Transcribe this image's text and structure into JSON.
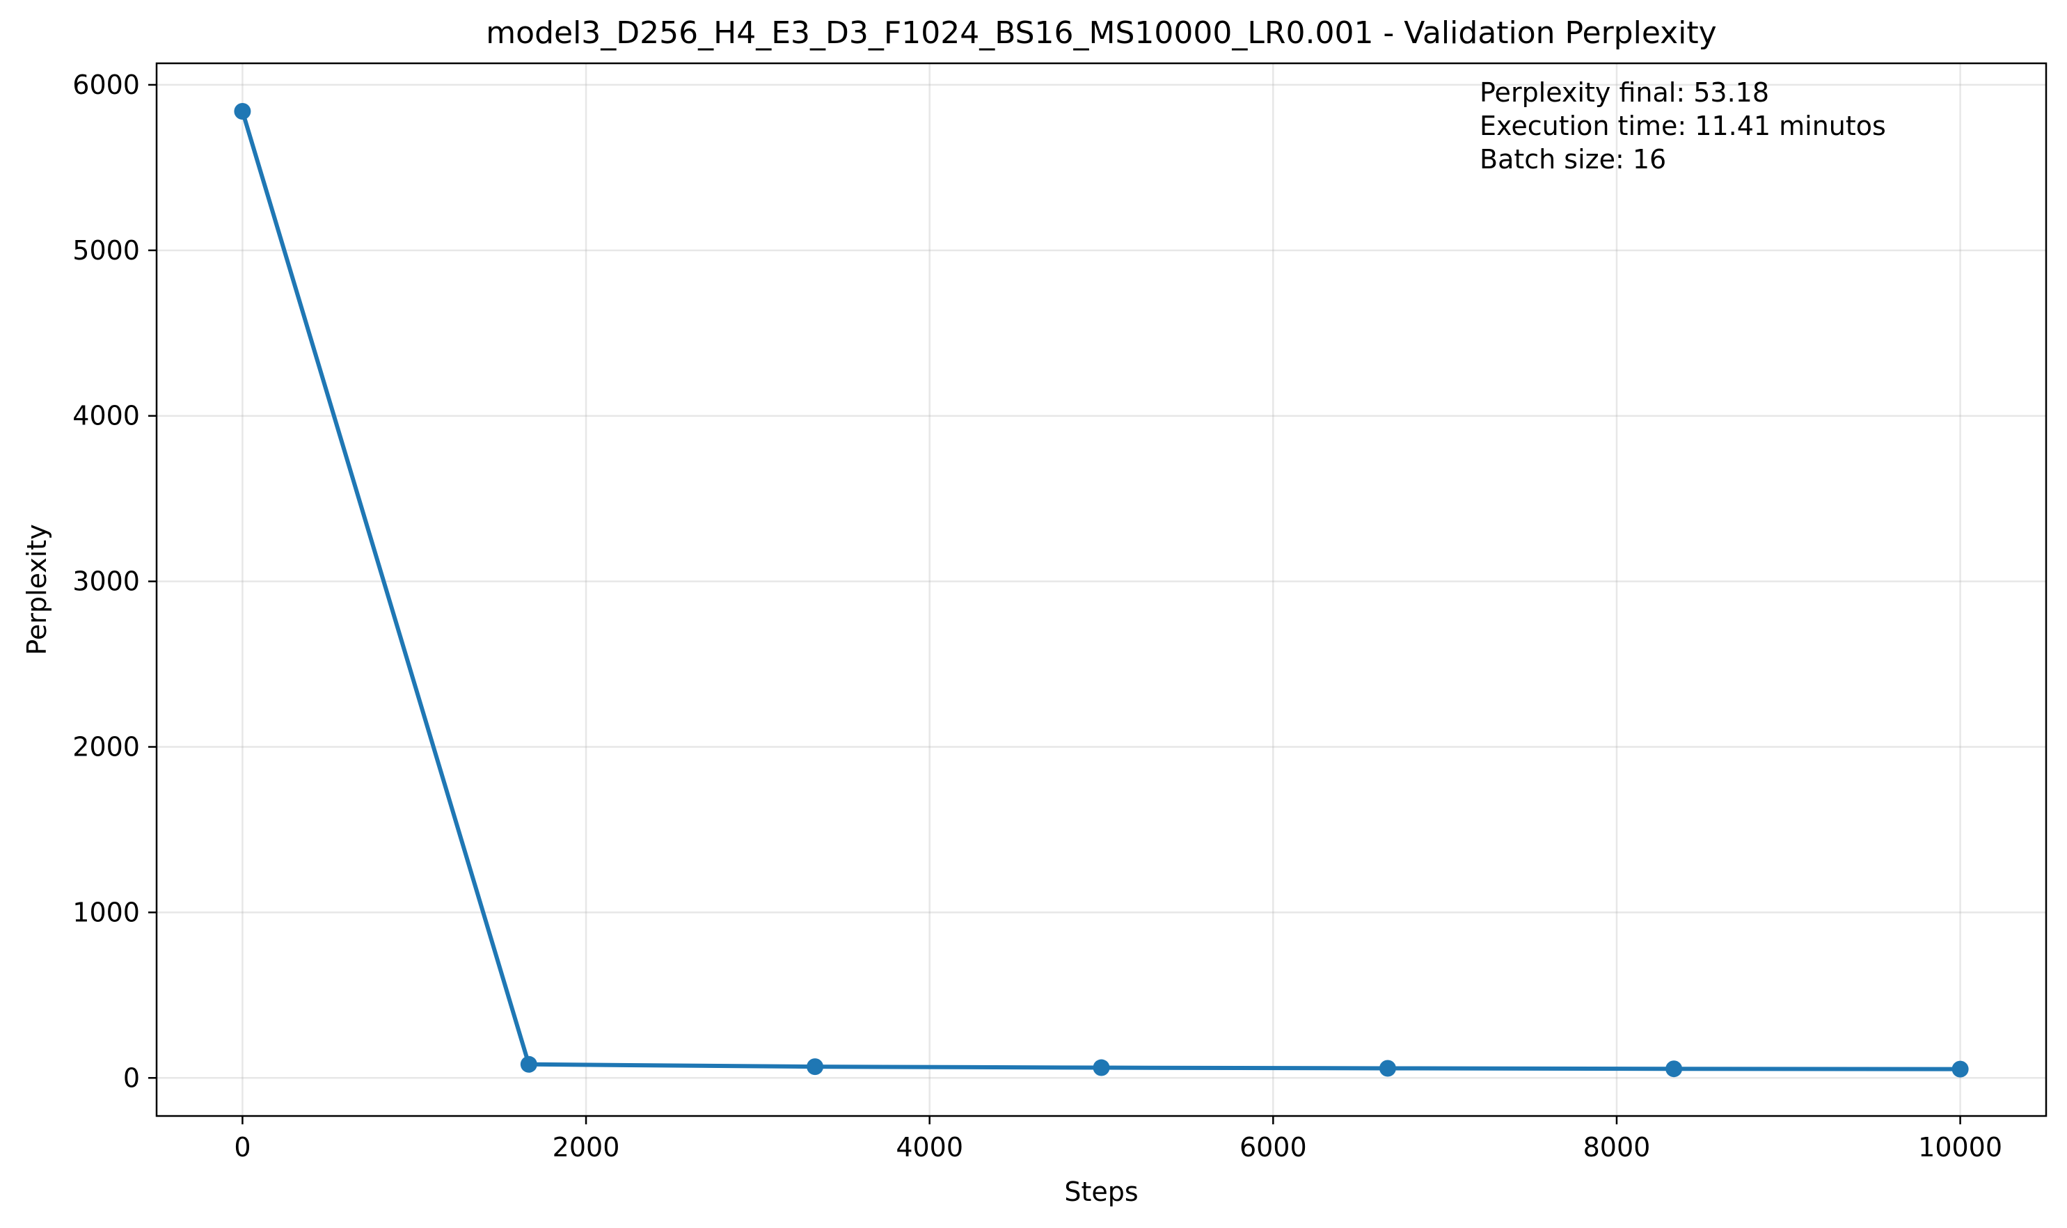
{
  "chart_data": {
    "type": "line",
    "title": "model3_D256_H4_E3_D3_F1024_BS16_MS10000_LR0.001 - Validation Perplexity",
    "xlabel": "Steps",
    "ylabel": "Perplexity",
    "xlim": [
      -500,
      10500
    ],
    "ylim": [
      -230,
      6130
    ],
    "xticks": [
      0,
      2000,
      4000,
      6000,
      8000,
      10000
    ],
    "yticks": [
      0,
      1000,
      2000,
      3000,
      4000,
      5000,
      6000
    ],
    "grid": true,
    "color": "#1f77b4",
    "series": [
      {
        "x": [
          0,
          1667,
          3333,
          5000,
          6667,
          8333,
          10000
        ],
        "y": [
          5840,
          82,
          68,
          62,
          58,
          55,
          53.18
        ]
      }
    ],
    "annotations": [
      "Perplexity final: 53.18",
      "Execution time: 11.41 minutos",
      "Batch size: 16"
    ]
  }
}
